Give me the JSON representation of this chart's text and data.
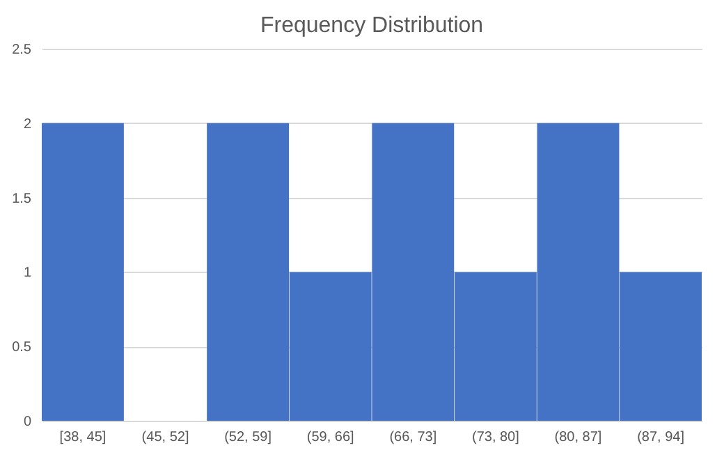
{
  "chart_data": {
    "type": "bar",
    "title": "Frequency Distribution",
    "categories": [
      "[38, 45]",
      "(45, 52]",
      "(52, 59]",
      "(59, 66]",
      "(66, 73]",
      "(73, 80]",
      "(80, 87]",
      "(87, 94]"
    ],
    "values": [
      2,
      0,
      2,
      1,
      2,
      1,
      2,
      1
    ],
    "color": "#4472c4",
    "ylim": [
      0,
      2.5
    ],
    "yticks": [
      0,
      0.5,
      1,
      1.5,
      2,
      2.5
    ],
    "grid": "y"
  }
}
